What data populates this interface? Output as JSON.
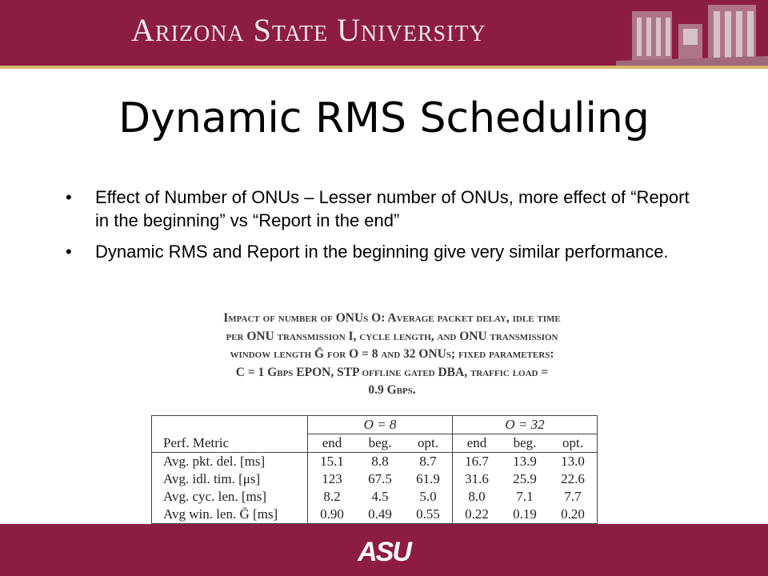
{
  "header": {
    "university_name": "Arizona State University",
    "campus_image_icon": "campus-building-icon"
  },
  "slide": {
    "title": "Dynamic RMS Scheduling",
    "bullets": [
      {
        "symbol": "•",
        "text": "Effect of Number of ONUs – Lesser number of ONUs, more effect of “Report in the beginning” vs “Report in the end”"
      },
      {
        "symbol": "•",
        "text": "Dynamic RMS and Report in the beginning give very similar performance."
      }
    ]
  },
  "figure": {
    "caption_lines": [
      "Impact of number of ONUs O: Average packet delay, idle time",
      "per ONU transmission I, cycle length, and ONU transmission",
      "window length Ḡ for O = 8 and 32 ONUs; fixed parameters:",
      "C = 1 Gbps EPON, STP offline gated DBA, traffic load =",
      "0.9 Gbps."
    ],
    "table": {
      "group_headers": [
        "O = 8",
        "O = 32"
      ],
      "column_header_metric": "Perf. Metric",
      "sub_headers": [
        "end",
        "beg.",
        "opt.",
        "end",
        "beg.",
        "opt."
      ],
      "rows": [
        {
          "metric": "Avg. pkt. del. [ms]",
          "values": [
            "15.1",
            "8.8",
            "8.7",
            "16.7",
            "13.9",
            "13.0"
          ]
        },
        {
          "metric": "Avg. idl. tim. [μs]",
          "values": [
            "123",
            "67.5",
            "61.9",
            "31.6",
            "25.9",
            "22.6"
          ]
        },
        {
          "metric": "Avg. cyc. len. [ms]",
          "values": [
            "8.2",
            "4.5",
            "5.0",
            "8.0",
            "7.1",
            "7.7"
          ]
        },
        {
          "metric": "Avg win. len. Ḡ [ms]",
          "values": [
            "0.90",
            "0.49",
            "0.55",
            "0.22",
            "0.19",
            "0.20"
          ]
        }
      ]
    }
  },
  "footer": {
    "logo_text": "ASU",
    "logo_icon": "asu-logo-icon"
  },
  "colors": {
    "maroon": "#8c1d40",
    "gold_rule": "#d9b56a"
  }
}
